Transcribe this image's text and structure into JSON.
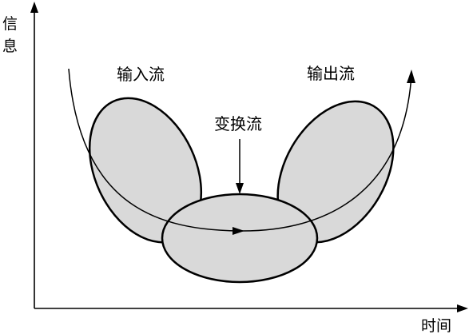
{
  "axes": {
    "y_label_line1": "信",
    "y_label_line2": "息",
    "x_label": "时间"
  },
  "flows": {
    "input": "输入流",
    "transform": "变换流",
    "output": "输出流"
  },
  "colors": {
    "fill": "#d9d9d9",
    "stroke": "#000000",
    "background": "#ffffff"
  }
}
